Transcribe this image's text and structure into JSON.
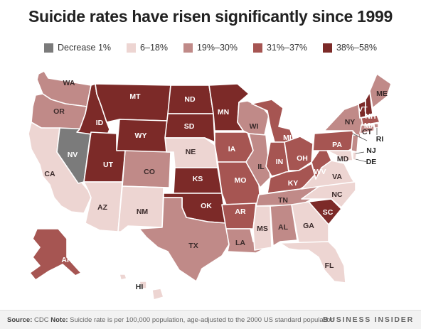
{
  "title": "Suicide rates have risen significantly since 1999",
  "legend": [
    {
      "label": "Decrease 1%",
      "color": "#7b7b7b"
    },
    {
      "label": "6–18%",
      "color": "#edd5d2"
    },
    {
      "label": "19%–30%",
      "color": "#c08a88"
    },
    {
      "label": "31%–37%",
      "color": "#a65552"
    },
    {
      "label": "38%–58%",
      "color": "#7c2a28"
    }
  ],
  "states": {
    "WA": "19%–30%",
    "OR": "19%–30%",
    "CA": "6–18%",
    "NV": "Decrease 1%",
    "ID": "38%–58%",
    "MT": "38%–58%",
    "WY": "38%–58%",
    "UT": "38%–58%",
    "AZ": "6–18%",
    "CO": "19%–30%",
    "NM": "6–18%",
    "ND": "38%–58%",
    "SD": "38%–58%",
    "NE": "6–18%",
    "KS": "38%–58%",
    "OK": "38%–58%",
    "TX": "19%–30%",
    "MN": "38%–58%",
    "IA": "31%–37%",
    "MO": "31%–37%",
    "AR": "31%–37%",
    "LA": "19%–30%",
    "WI": "19%–30%",
    "IL": "19%–30%",
    "MI": "31%–37%",
    "IN": "31%–37%",
    "OH": "31%–37%",
    "KY": "31%–37%",
    "TN": "19%–30%",
    "MS": "6–18%",
    "AL": "19%–30%",
    "GA": "6–18%",
    "FL": "6–18%",
    "SC": "38%–58%",
    "NC": "6–18%",
    "VA": "6–18%",
    "WV": "31%–37%",
    "PA": "31%–37%",
    "NY": "19%–30%",
    "VT": "38%–58%",
    "NH": "38%–58%",
    "ME": "19%–30%",
    "MA": "31%–37%",
    "RI": "19%–30%",
    "CT": "19%–30%",
    "NJ": "19%–30%",
    "DE": "6–18%",
    "MD": "6–18%",
    "AK": "31%–37%",
    "HI": "6–18%"
  },
  "source_label": "Source:",
  "source_text": "CDC",
  "note_label": "Note:",
  "note_text": "Suicide rate is per 100,000 population, age-adjusted to the 2000 US standard population",
  "brand": "BUSINESS INSIDER"
}
